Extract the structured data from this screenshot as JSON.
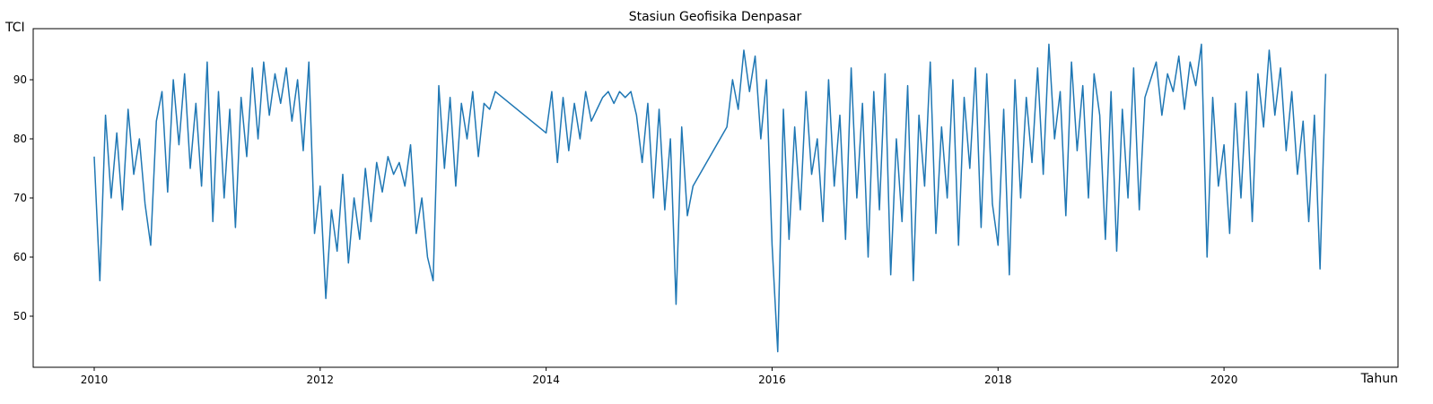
{
  "chart_data": {
    "type": "line",
    "title": "Stasiun Geofisika Denpasar",
    "x_label": "Tahun",
    "y_label": "TCI",
    "xlim": [
      2009.46,
      2021.54
    ],
    "ylim": [
      41.36,
      98.64
    ],
    "xticks": [
      2010,
      2012,
      2014,
      2016,
      2018,
      2020
    ],
    "yticks": [
      50,
      60,
      70,
      80,
      90
    ],
    "x": [
      2010,
      2010.05,
      2010.1,
      2010.15,
      2010.2,
      2010.25,
      2010.3,
      2010.35,
      2010.4,
      2010.45,
      2010.5,
      2010.55,
      2010.6,
      2010.65,
      2010.7,
      2010.75,
      2010.8,
      2010.85,
      2010.9,
      2010.95,
      2011,
      2011.05,
      2011.1,
      2011.15,
      2011.2,
      2011.25,
      2011.3,
      2011.35,
      2011.4,
      2011.45,
      2011.5,
      2011.55,
      2011.6,
      2011.65,
      2011.7,
      2011.75,
      2011.8,
      2011.85,
      2011.9,
      2011.95,
      2012,
      2012.05,
      2012.1,
      2012.15,
      2012.2,
      2012.25,
      2012.3,
      2012.35,
      2012.4,
      2012.45,
      2012.5,
      2012.55,
      2012.6,
      2012.65,
      2012.7,
      2012.75,
      2012.8,
      2012.85,
      2012.9,
      2012.95,
      2013,
      2013.05,
      2013.1,
      2013.15,
      2013.2,
      2013.25,
      2013.3,
      2013.35,
      2013.4,
      2013.45,
      2013.5,
      2013.55,
      2014,
      2014.05,
      2014.1,
      2014.15,
      2014.2,
      2014.25,
      2014.3,
      2014.35,
      2014.4,
      2014.45,
      2014.5,
      2014.55,
      2014.6,
      2014.65,
      2014.7,
      2014.75,
      2014.8,
      2014.85,
      2014.9,
      2014.95,
      2015,
      2015.05,
      2015.1,
      2015.15,
      2015.2,
      2015.25,
      2015.3,
      2015.6,
      2015.65,
      2015.7,
      2015.75,
      2015.8,
      2015.85,
      2015.9,
      2015.95,
      2016,
      2016.05,
      2016.1,
      2016.15,
      2016.2,
      2016.25,
      2016.3,
      2016.35,
      2016.4,
      2016.45,
      2016.5,
      2016.55,
      2016.6,
      2016.65,
      2016.7,
      2016.75,
      2016.8,
      2016.85,
      2016.9,
      2016.95,
      2017,
      2017.05,
      2017.1,
      2017.15,
      2017.2,
      2017.25,
      2017.3,
      2017.35,
      2017.4,
      2017.45,
      2017.5,
      2017.55,
      2017.6,
      2017.65,
      2017.7,
      2017.75,
      2017.8,
      2017.85,
      2017.9,
      2017.95,
      2018,
      2018.05,
      2018.1,
      2018.15,
      2018.2,
      2018.25,
      2018.3,
      2018.35,
      2018.4,
      2018.45,
      2018.5,
      2018.55,
      2018.6,
      2018.65,
      2018.7,
      2018.75,
      2018.8,
      2018.85,
      2018.9,
      2018.95,
      2019,
      2019.05,
      2019.1,
      2019.15,
      2019.2,
      2019.25,
      2019.3,
      2019.35,
      2019.4,
      2019.45,
      2019.5,
      2019.55,
      2019.6,
      2019.65,
      2019.7,
      2019.75,
      2019.8,
      2019.85,
      2019.9,
      2019.95,
      2020,
      2020.05,
      2020.1,
      2020.15,
      2020.2,
      2020.25,
      2020.3,
      2020.35,
      2020.4,
      2020.45,
      2020.5,
      2020.55,
      2020.6,
      2020.65,
      2020.7,
      2020.75,
      2020.8,
      2020.85,
      2020.9
    ],
    "series": [
      {
        "color": "#1f77b4",
        "values": [
          77,
          56,
          84,
          70,
          81,
          68,
          85,
          74,
          80,
          69,
          62,
          83,
          88,
          71,
          90,
          79,
          91,
          75,
          86,
          72,
          93,
          66,
          88,
          70,
          85,
          65,
          87,
          77,
          92,
          80,
          93,
          84,
          91,
          86,
          92,
          83,
          90,
          78,
          93,
          64,
          72,
          53,
          68,
          61,
          74,
          59,
          70,
          63,
          75,
          66,
          76,
          71,
          77,
          74,
          76,
          72,
          79,
          64,
          70,
          60,
          56,
          89,
          75,
          87,
          72,
          86,
          80,
          88,
          77,
          86,
          85,
          88,
          81,
          88,
          76,
          87,
          78,
          86,
          80,
          88,
          83,
          85,
          87,
          88,
          86,
          88,
          87,
          88,
          84,
          76,
          86,
          70,
          85,
          68,
          80,
          52,
          82,
          67,
          72,
          82,
          90,
          85,
          95,
          88,
          94,
          80,
          90,
          62,
          44,
          85,
          63,
          82,
          68,
          88,
          74,
          80,
          66,
          90,
          72,
          84,
          63,
          92,
          70,
          86,
          60,
          88,
          68,
          91,
          57,
          80,
          66,
          89,
          56,
          84,
          72,
          93,
          64,
          82,
          70,
          90,
          62,
          87,
          75,
          92,
          65,
          91,
          69,
          62,
          85,
          57,
          90,
          70,
          87,
          76,
          92,
          74,
          96,
          80,
          88,
          67,
          93,
          78,
          89,
          70,
          91,
          84,
          63,
          88,
          61,
          85,
          70,
          92,
          68,
          87,
          90,
          93,
          84,
          91,
          88,
          94,
          85,
          93,
          89,
          96,
          60,
          87,
          72,
          79,
          64,
          86,
          70,
          88,
          66,
          91,
          82,
          95,
          84,
          92,
          78,
          88,
          74,
          83,
          66,
          84,
          58,
          91
        ]
      }
    ]
  }
}
